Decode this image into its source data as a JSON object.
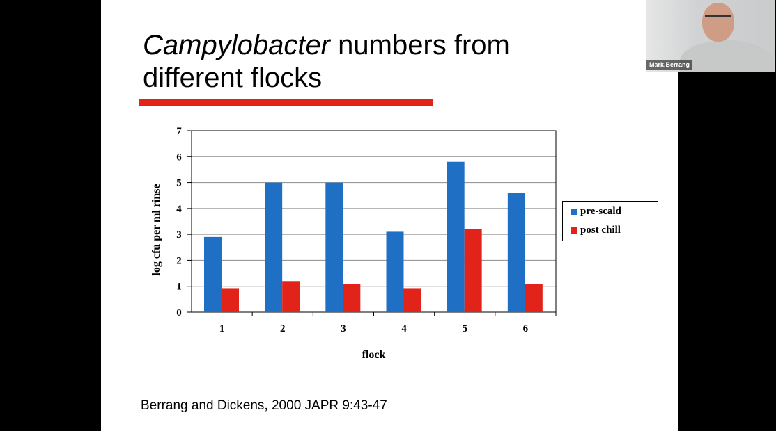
{
  "slide": {
    "title_italic": "Campylobacter",
    "title_rest": " numbers from different flocks",
    "citation": "Berrang and Dickens, 2000 JAPR 9:43-47"
  },
  "video": {
    "participant_name": "Mark.Berrang"
  },
  "chart_data": {
    "type": "bar",
    "categories": [
      "1",
      "2",
      "3",
      "4",
      "5",
      "6"
    ],
    "series": [
      {
        "name": "pre-scald",
        "color": "#1f6fc4",
        "values": [
          2.9,
          5.0,
          5.0,
          3.1,
          5.8,
          4.6
        ]
      },
      {
        "name": "post chill",
        "color": "#e2231a",
        "values": [
          0.9,
          1.2,
          1.1,
          0.9,
          3.2,
          1.1
        ]
      }
    ],
    "xlabel": "flock",
    "ylabel": "log cfu per ml rinse",
    "ylim": [
      0,
      7
    ],
    "yticks": [
      "0",
      "1",
      "2",
      "3",
      "4",
      "5",
      "6",
      "7"
    ],
    "grid": true,
    "legend_position": "right"
  }
}
